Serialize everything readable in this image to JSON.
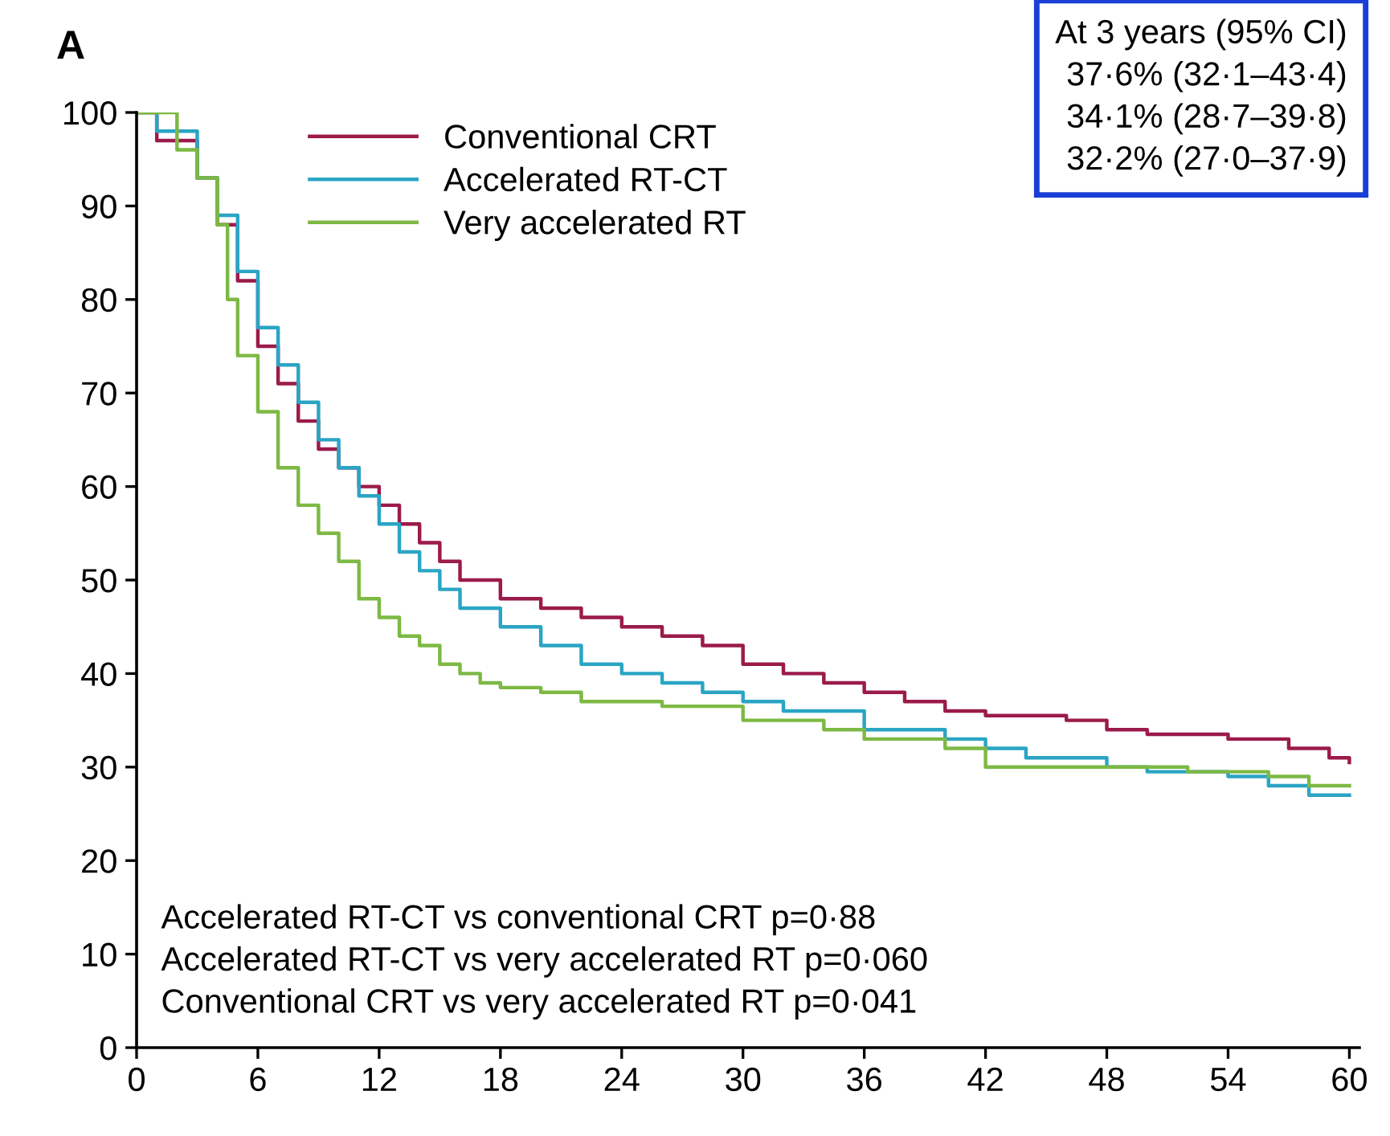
{
  "chart_data": {
    "type": "step",
    "title": "A",
    "xlim": [
      0,
      60.5
    ],
    "ylim": [
      0,
      100
    ],
    "xticks": [
      0,
      6,
      12,
      18,
      24,
      30,
      36,
      42,
      48,
      54,
      60
    ],
    "yticks": [
      0,
      10,
      20,
      30,
      40,
      50,
      60,
      70,
      80,
      90,
      100
    ],
    "grid": false,
    "legend": "top",
    "line_style": "solid",
    "marker": "none",
    "series": [
      {
        "name": "Conventional CRT",
        "color": "#9b1b4a",
        "x": [
          0,
          1,
          3,
          4,
          5,
          6,
          7,
          8,
          9,
          10,
          11,
          12,
          13,
          14,
          15,
          16,
          18,
          20,
          22,
          24,
          26,
          28,
          30,
          32,
          34,
          36,
          38,
          40,
          42,
          46,
          48,
          50,
          54,
          57,
          59,
          60
        ],
        "values": [
          100,
          97,
          93,
          88,
          82,
          75,
          71,
          67,
          64,
          62,
          60,
          58,
          56,
          54,
          52,
          50,
          48,
          47,
          46,
          45,
          44,
          43,
          41,
          40,
          39,
          38,
          37,
          36,
          35.5,
          35,
          34,
          33.5,
          33,
          32,
          31,
          30.5
        ]
      },
      {
        "name": "Accelerated RT-CT",
        "color": "#2aa5c4",
        "x": [
          0,
          1,
          3,
          4,
          5,
          6,
          7,
          8,
          9,
          10,
          11,
          12,
          13,
          14,
          15,
          16,
          18,
          20,
          22,
          24,
          26,
          28,
          30,
          32,
          36,
          40,
          42,
          44,
          48,
          50,
          54,
          56,
          58,
          60
        ],
        "values": [
          100,
          98,
          93,
          89,
          83,
          77,
          73,
          69,
          65,
          62,
          59,
          56,
          53,
          51,
          49,
          47,
          45,
          43,
          41,
          40,
          39,
          38,
          37,
          36,
          34,
          33,
          32,
          31,
          30,
          29.5,
          29,
          28,
          27,
          27
        ]
      },
      {
        "name": "Very accelerated RT",
        "color": "#7db944",
        "x": [
          0,
          2,
          3,
          4,
          4.5,
          5,
          6,
          7,
          8,
          9,
          10,
          11,
          12,
          13,
          14,
          15,
          16,
          17,
          18,
          20,
          22,
          26,
          30,
          34,
          36,
          40,
          42,
          48,
          52,
          56,
          58,
          60
        ],
        "values": [
          100,
          96,
          93,
          88,
          80,
          74,
          68,
          62,
          58,
          55,
          52,
          48,
          46,
          44,
          43,
          41,
          40,
          39,
          38.5,
          38,
          37,
          36.5,
          35,
          34,
          33,
          32,
          30,
          30,
          29.5,
          29,
          28,
          28
        ]
      }
    ],
    "annotations": [
      "At 3 years (95% CI)\n37·6% (32·1–43·4)\n34·1% (28·7–39·8)\n32·2% (27·0–37·9)",
      "Accelerated RT-CT vs conventional CRT p=0·88\nAccelerated RT-CT vs very accelerated RT p=0·060\nConventional CRT vs very accelerated RT p=0·041"
    ]
  }
}
